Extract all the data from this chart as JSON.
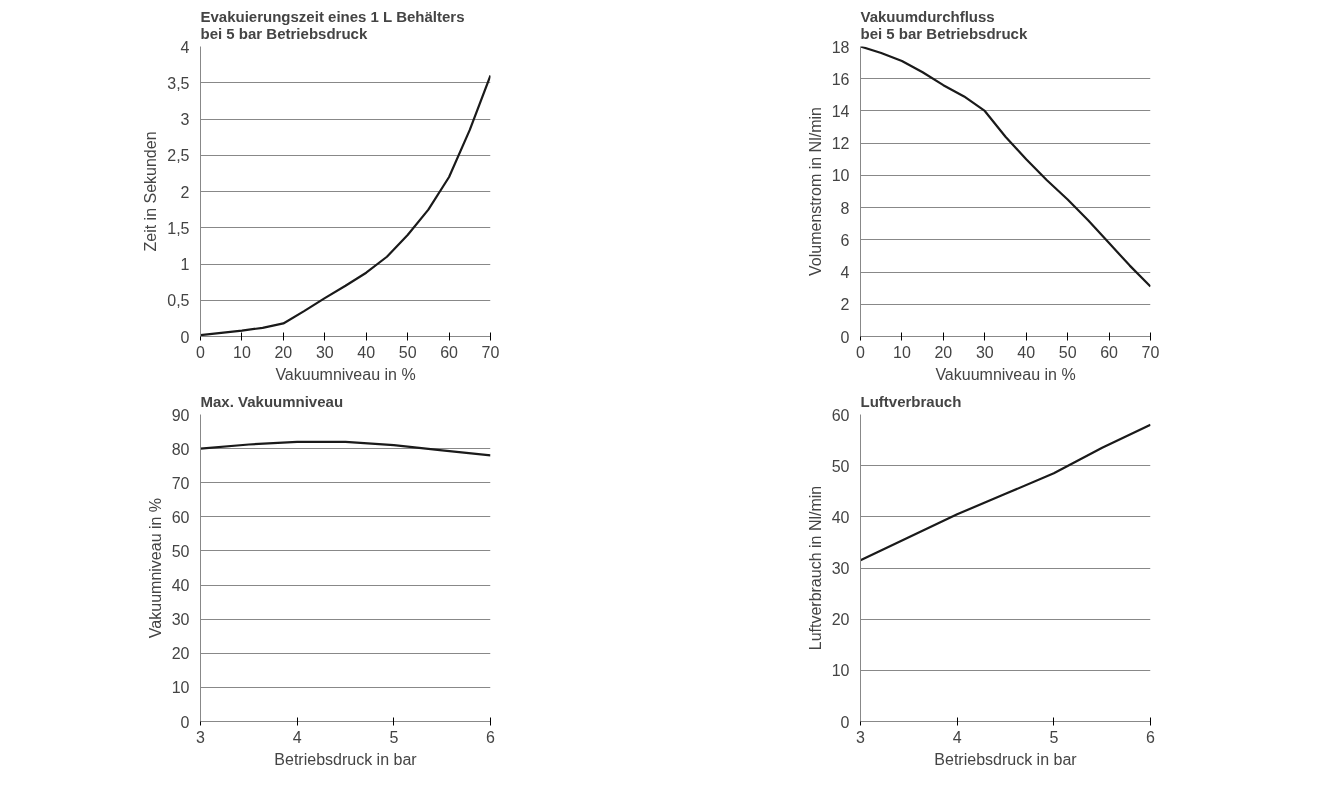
{
  "chart_data": [
    {
      "type": "line",
      "title": "Evakuierungszeit eines 1 L Behälters\nbei 5 bar Betriebsdruck",
      "xlabel": "Vakuumniveau in %",
      "ylabel": "Zeit in Sekunden",
      "x": [
        0,
        5,
        10,
        15,
        20,
        25,
        30,
        35,
        40,
        45,
        50,
        55,
        60,
        65,
        70
      ],
      "series": [
        {
          "color": "#1a1a1a",
          "values": [
            0.02,
            0.05,
            0.08,
            0.12,
            0.18,
            0.35,
            0.53,
            0.7,
            0.88,
            1.1,
            1.4,
            1.75,
            2.2,
            2.85,
            3.6
          ]
        }
      ],
      "xlim": [
        0,
        70
      ],
      "xticks": [
        0,
        10,
        20,
        30,
        40,
        50,
        60,
        70
      ],
      "ylim": [
        0,
        4
      ],
      "yticks": [
        0,
        {
          "value": 0.5,
          "label": "0,5"
        },
        1,
        {
          "value": 1.5,
          "label": "1,5"
        },
        2,
        {
          "value": 2.5,
          "label": "2,5"
        },
        3,
        {
          "value": 3.5,
          "label": "3,5"
        },
        4
      ],
      "grid": "y",
      "marker": "none",
      "line_style": "solid"
    },
    {
      "type": "line",
      "title": "Vakuumdurchfluss\nbei 5 bar Betriebsdruck",
      "xlabel": "Vakuumniveau in %",
      "ylabel": "Volumenstrom in Nl/min",
      "x": [
        0,
        5,
        10,
        15,
        20,
        25,
        30,
        35,
        40,
        45,
        50,
        55,
        60,
        65,
        70
      ],
      "series": [
        {
          "color": "#1a1a1a",
          "values": [
            18,
            17.6,
            17.1,
            16.4,
            15.6,
            14.9,
            14,
            12.4,
            11,
            9.7,
            8.5,
            7.2,
            5.8,
            4.4,
            3.1
          ]
        }
      ],
      "xlim": [
        0,
        70
      ],
      "xticks": [
        0,
        10,
        20,
        30,
        40,
        50,
        60,
        70
      ],
      "ylim": [
        0,
        18
      ],
      "yticks": [
        0,
        2,
        4,
        6,
        8,
        10,
        12,
        14,
        16,
        18
      ],
      "grid": "y",
      "marker": "none",
      "line_style": "solid"
    },
    {
      "type": "line",
      "title": "Max. Vakuumniveau",
      "xlabel": "Betriebsdruck in bar",
      "ylabel": "Vakuumniveau in %",
      "x": [
        3,
        3.5,
        4,
        4.5,
        5,
        5.5,
        6
      ],
      "series": [
        {
          "color": "#1a1a1a",
          "values": [
            80,
            81.2,
            82,
            82,
            81,
            79.5,
            78
          ]
        }
      ],
      "xlim": [
        3,
        6
      ],
      "xticks": [
        3,
        4,
        5,
        6
      ],
      "ylim": [
        0,
        90
      ],
      "yticks": [
        0,
        10,
        20,
        30,
        40,
        50,
        60,
        70,
        80,
        90
      ],
      "grid": "y",
      "marker": "none",
      "line_style": "solid"
    },
    {
      "type": "line",
      "title": "Luftverbrauch",
      "xlabel": "Betriebsdruck in bar",
      "ylabel": "Luftverbrauch in Nl/min",
      "x": [
        3,
        3.5,
        4,
        4.5,
        5,
        5.5,
        6
      ],
      "series": [
        {
          "color": "#1a1a1a",
          "values": [
            31.5,
            36,
            40.5,
            44.5,
            48.5,
            53.5,
            58
          ]
        }
      ],
      "xlim": [
        3,
        6
      ],
      "xticks": [
        3,
        4,
        5,
        6
      ],
      "ylim": [
        0,
        60
      ],
      "yticks": [
        0,
        10,
        20,
        30,
        40,
        50,
        60
      ],
      "grid": "y",
      "marker": "none",
      "line_style": "solid"
    }
  ]
}
